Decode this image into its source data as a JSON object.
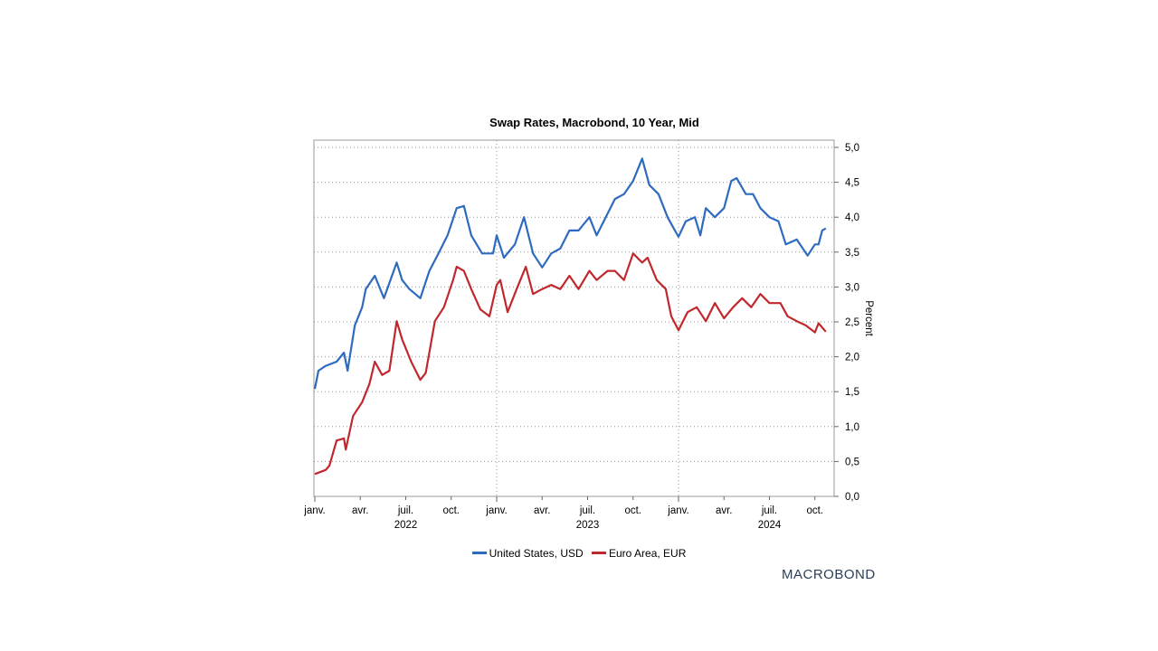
{
  "chart_data": {
    "type": "line",
    "title": "Swap Rates, Macrobond, 10 Year, Mid",
    "ylabel": "Percent",
    "xlabel": "",
    "ylim": [
      0,
      5
    ],
    "xlim": [
      2022.0,
      2024.85
    ],
    "y_ticks": [
      "0,0",
      "0,5",
      "1,0",
      "1,5",
      "2,0",
      "2,5",
      "3,0",
      "3,5",
      "4,0",
      "4,5",
      "5,0"
    ],
    "x_ticks": [
      {
        "t": 2022.0,
        "label": "janv."
      },
      {
        "t": 2022.25,
        "label": "avr."
      },
      {
        "t": 2022.5,
        "label": "juil."
      },
      {
        "t": 2022.75,
        "label": "oct."
      },
      {
        "t": 2023.0,
        "label": "janv."
      },
      {
        "t": 2023.25,
        "label": "avr."
      },
      {
        "t": 2023.5,
        "label": "juil."
      },
      {
        "t": 2023.75,
        "label": "oct."
      },
      {
        "t": 2024.0,
        "label": "janv."
      },
      {
        "t": 2024.25,
        "label": "avr."
      },
      {
        "t": 2024.5,
        "label": "juil."
      },
      {
        "t": 2024.75,
        "label": "oct."
      }
    ],
    "year_labels": [
      {
        "t": 2022.5,
        "label": "2022"
      },
      {
        "t": 2023.5,
        "label": "2023"
      },
      {
        "t": 2024.5,
        "label": "2024"
      }
    ],
    "grid": true,
    "legend_position": "bottom-center",
    "series": [
      {
        "name": "United States, USD",
        "color": "#2e6bbf",
        "points": [
          [
            2022.0,
            1.54
          ],
          [
            2022.02,
            1.8
          ],
          [
            2022.06,
            1.87
          ],
          [
            2022.12,
            1.93
          ],
          [
            2022.16,
            2.06
          ],
          [
            2022.18,
            1.8
          ],
          [
            2022.22,
            2.45
          ],
          [
            2022.26,
            2.71
          ],
          [
            2022.28,
            2.97
          ],
          [
            2022.33,
            3.16
          ],
          [
            2022.38,
            2.84
          ],
          [
            2022.45,
            3.35
          ],
          [
            2022.48,
            3.1
          ],
          [
            2022.52,
            2.97
          ],
          [
            2022.58,
            2.84
          ],
          [
            2022.63,
            3.23
          ],
          [
            2022.68,
            3.48
          ],
          [
            2022.73,
            3.74
          ],
          [
            2022.78,
            4.13
          ],
          [
            2022.82,
            4.16
          ],
          [
            2022.86,
            3.74
          ],
          [
            2022.92,
            3.48
          ],
          [
            2022.98,
            3.48
          ],
          [
            2023.0,
            3.74
          ],
          [
            2023.04,
            3.42
          ],
          [
            2023.1,
            3.61
          ],
          [
            2023.15,
            4.0
          ],
          [
            2023.2,
            3.48
          ],
          [
            2023.25,
            3.28
          ],
          [
            2023.3,
            3.48
          ],
          [
            2023.35,
            3.55
          ],
          [
            2023.4,
            3.81
          ],
          [
            2023.45,
            3.81
          ],
          [
            2023.51,
            4.0
          ],
          [
            2023.55,
            3.74
          ],
          [
            2023.6,
            4.0
          ],
          [
            2023.65,
            4.26
          ],
          [
            2023.7,
            4.33
          ],
          [
            2023.75,
            4.52
          ],
          [
            2023.8,
            4.84
          ],
          [
            2023.84,
            4.46
          ],
          [
            2023.89,
            4.33
          ],
          [
            2023.94,
            4.0
          ],
          [
            2023.98,
            3.81
          ],
          [
            2024.0,
            3.72
          ],
          [
            2024.04,
            3.94
          ],
          [
            2024.09,
            4.0
          ],
          [
            2024.12,
            3.74
          ],
          [
            2024.15,
            4.13
          ],
          [
            2024.2,
            4.0
          ],
          [
            2024.25,
            4.13
          ],
          [
            2024.29,
            4.52
          ],
          [
            2024.32,
            4.56
          ],
          [
            2024.37,
            4.33
          ],
          [
            2024.41,
            4.33
          ],
          [
            2024.45,
            4.13
          ],
          [
            2024.5,
            4.0
          ],
          [
            2024.55,
            3.94
          ],
          [
            2024.59,
            3.61
          ],
          [
            2024.65,
            3.68
          ],
          [
            2024.71,
            3.45
          ],
          [
            2024.75,
            3.61
          ],
          [
            2024.77,
            3.61
          ],
          [
            2024.79,
            3.81
          ],
          [
            2024.81,
            3.84
          ]
        ]
      },
      {
        "name": "Euro Area, EUR",
        "color": "#c0282e",
        "points": [
          [
            2022.0,
            0.32
          ],
          [
            2022.06,
            0.38
          ],
          [
            2022.08,
            0.44
          ],
          [
            2022.12,
            0.8
          ],
          [
            2022.16,
            0.83
          ],
          [
            2022.17,
            0.67
          ],
          [
            2022.21,
            1.15
          ],
          [
            2022.26,
            1.35
          ],
          [
            2022.3,
            1.61
          ],
          [
            2022.33,
            1.93
          ],
          [
            2022.37,
            1.74
          ],
          [
            2022.41,
            1.8
          ],
          [
            2022.45,
            2.51
          ],
          [
            2022.48,
            2.25
          ],
          [
            2022.53,
            1.93
          ],
          [
            2022.58,
            1.67
          ],
          [
            2022.61,
            1.77
          ],
          [
            2022.66,
            2.51
          ],
          [
            2022.71,
            2.71
          ],
          [
            2022.76,
            3.1
          ],
          [
            2022.78,
            3.29
          ],
          [
            2022.82,
            3.23
          ],
          [
            2022.86,
            2.97
          ],
          [
            2022.91,
            2.68
          ],
          [
            2022.96,
            2.58
          ],
          [
            2023.0,
            3.03
          ],
          [
            2023.02,
            3.1
          ],
          [
            2023.06,
            2.64
          ],
          [
            2023.11,
            2.97
          ],
          [
            2023.16,
            3.29
          ],
          [
            2023.2,
            2.9
          ],
          [
            2023.25,
            2.97
          ],
          [
            2023.3,
            3.03
          ],
          [
            2023.35,
            2.97
          ],
          [
            2023.4,
            3.16
          ],
          [
            2023.45,
            2.97
          ],
          [
            2023.51,
            3.23
          ],
          [
            2023.55,
            3.1
          ],
          [
            2023.61,
            3.23
          ],
          [
            2023.65,
            3.23
          ],
          [
            2023.7,
            3.1
          ],
          [
            2023.75,
            3.48
          ],
          [
            2023.8,
            3.35
          ],
          [
            2023.83,
            3.42
          ],
          [
            2023.88,
            3.1
          ],
          [
            2023.93,
            2.97
          ],
          [
            2023.96,
            2.58
          ],
          [
            2024.0,
            2.38
          ],
          [
            2024.05,
            2.64
          ],
          [
            2024.1,
            2.71
          ],
          [
            2024.15,
            2.51
          ],
          [
            2024.2,
            2.77
          ],
          [
            2024.25,
            2.55
          ],
          [
            2024.3,
            2.71
          ],
          [
            2024.35,
            2.84
          ],
          [
            2024.4,
            2.71
          ],
          [
            2024.45,
            2.9
          ],
          [
            2024.5,
            2.77
          ],
          [
            2024.56,
            2.77
          ],
          [
            2024.6,
            2.58
          ],
          [
            2024.65,
            2.51
          ],
          [
            2024.7,
            2.45
          ],
          [
            2024.75,
            2.35
          ],
          [
            2024.77,
            2.48
          ],
          [
            2024.81,
            2.36
          ]
        ]
      }
    ]
  },
  "branding": {
    "logo_text": "MACROBOND"
  }
}
